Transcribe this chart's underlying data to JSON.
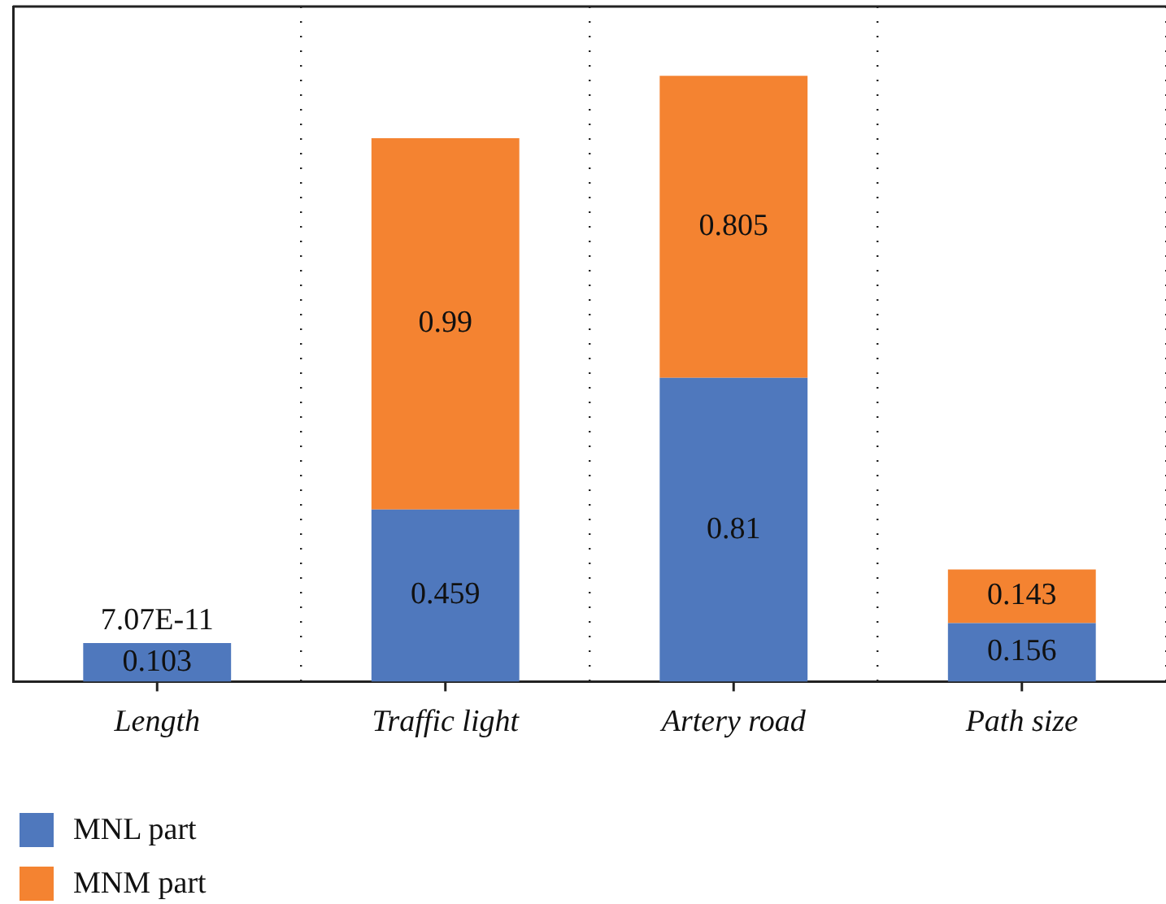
{
  "chart_data": {
    "type": "bar",
    "stacked": true,
    "categories": [
      "Length",
      "Traffic light",
      "Artery road",
      "Path size"
    ],
    "series": [
      {
        "name": "MNL part",
        "color": "#4f78bd",
        "values": [
          0.103,
          0.459,
          0.81,
          0.156
        ],
        "value_labels": [
          "0.103",
          "0.459",
          "0.81",
          "0.156"
        ]
      },
      {
        "name": "MNM part",
        "color": "#f48331",
        "values": [
          7.07e-11,
          0.99,
          0.805,
          0.143
        ],
        "value_labels": [
          "7.07E-11",
          "0.99",
          "0.805",
          "0.143"
        ]
      }
    ],
    "grid": "x",
    "tick_labels": "x",
    "legend": "bottom left"
  }
}
